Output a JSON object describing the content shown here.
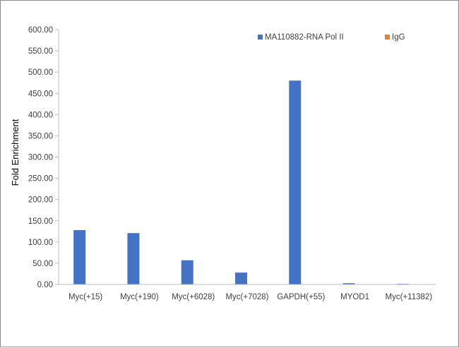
{
  "chart_data": {
    "type": "bar",
    "title": "",
    "xlabel": "",
    "ylabel": "Fold Enrichment",
    "ylim": [
      0,
      600
    ],
    "yticks": [
      "0.00",
      "50.00",
      "100.00",
      "150.00",
      "200.00",
      "250.00",
      "300.00",
      "350.00",
      "400.00",
      "450.00",
      "500.00",
      "550.00",
      "600.00"
    ],
    "categories": [
      "Myc(+15)",
      "Myc(+190)",
      "Myc(+6028)",
      "Myc(+7028)",
      "GAPDH(+55)",
      "MYOD1",
      "Myc(+11382)"
    ],
    "series": [
      {
        "name": "MA110882-RNA Pol II",
        "color": "#4472C4",
        "values": [
          128,
          121,
          57,
          28,
          480,
          3,
          1.5
        ]
      },
      {
        "name": "IgG",
        "color": "#ED7D31",
        "values": [
          0,
          0,
          0,
          0,
          0,
          0,
          0
        ]
      }
    ],
    "grid": false,
    "legend_position": "top-right"
  }
}
